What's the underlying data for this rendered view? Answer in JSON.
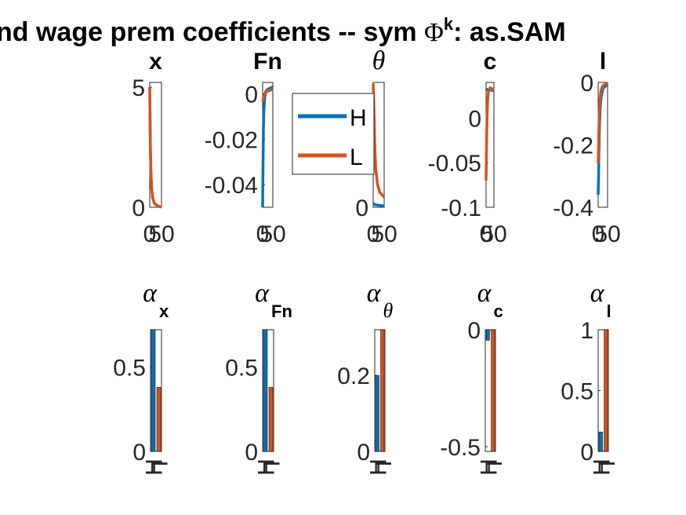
{
  "figure": {
    "suptitle_pre": "nd wage prem coefficients -- sym ",
    "suptitle_phi": "Φ",
    "suptitle_sup": "k",
    "suptitle_post": ": as.SAM"
  },
  "colors": {
    "H": "#0072BD",
    "L": "#D95319",
    "axis": "#262626"
  },
  "legend": {
    "entries": [
      "H",
      "L"
    ],
    "location": "inside panel 2 (Fn), right"
  },
  "chart_data": [
    {
      "type": "line",
      "title": "x",
      "xticks": [
        "0",
        "50"
      ],
      "xlim": [
        0,
        50
      ],
      "ylim": [
        0,
        5.2
      ],
      "yticks": [
        0,
        5
      ],
      "ytick_labels": [
        "0",
        "5"
      ],
      "series": [
        {
          "name": "H",
          "points": [
            [
              0,
              5.0
            ],
            [
              1,
              4.0
            ],
            [
              2,
              3.0
            ],
            [
              3,
              2.3
            ],
            [
              5,
              1.4
            ],
            [
              8,
              0.8
            ],
            [
              12,
              0.4
            ],
            [
              20,
              0.15
            ],
            [
              35,
              0.04
            ],
            [
              50,
              0.01
            ]
          ]
        },
        {
          "name": "L",
          "points": [
            [
              0,
              5.0
            ],
            [
              1,
              4.05
            ],
            [
              2,
              3.05
            ],
            [
              3,
              2.35
            ],
            [
              5,
              1.45
            ],
            [
              8,
              0.82
            ],
            [
              12,
              0.42
            ],
            [
              20,
              0.16
            ],
            [
              35,
              0.05
            ],
            [
              50,
              0.01
            ]
          ]
        }
      ]
    },
    {
      "type": "line",
      "title": "Fn",
      "xticks": [
        "0",
        "50"
      ],
      "xlim": [
        0,
        50
      ],
      "ylim": [
        -0.05,
        0.005
      ],
      "yticks": [
        -0.04,
        -0.02,
        0
      ],
      "ytick_labels": [
        "-0.04",
        "-0.02",
        "0"
      ],
      "series": [
        {
          "name": "H",
          "points": [
            [
              0,
              -0.05
            ],
            [
              2,
              -0.03
            ],
            [
              4,
              -0.015
            ],
            [
              6,
              -0.008
            ],
            [
              10,
              -0.002
            ],
            [
              15,
              0.001
            ],
            [
              25,
              0.002
            ],
            [
              50,
              0.003
            ]
          ]
        },
        {
          "name": "L",
          "points": [
            [
              0,
              -0.0035
            ],
            [
              3,
              -0.0025
            ],
            [
              6,
              -0.001
            ],
            [
              10,
              0.0
            ],
            [
              20,
              0.001
            ],
            [
              50,
              0.002
            ]
          ]
        }
      ]
    },
    {
      "type": "line",
      "title": "θ",
      "xticks": [
        "0",
        "50"
      ],
      "xlim": [
        0,
        50
      ],
      "ylim": [
        0,
        1.0
      ],
      "yticks": [
        0
      ],
      "ytick_labels": [
        "0"
      ],
      "series": [
        {
          "name": "H",
          "points": [
            [
              0,
              0.03
            ],
            [
              10,
              0.02
            ],
            [
              50,
              0.01
            ]
          ]
        },
        {
          "name": "L",
          "points": [
            [
              0,
              0.99
            ],
            [
              2,
              0.9
            ],
            [
              4,
              0.75
            ],
            [
              6,
              0.6
            ],
            [
              8,
              0.45
            ],
            [
              12,
              0.3
            ],
            [
              20,
              0.18
            ],
            [
              30,
              0.12
            ],
            [
              50,
              0.08
            ]
          ]
        }
      ]
    },
    {
      "type": "line",
      "title": "c",
      "xticks": [
        "0",
        "50"
      ],
      "xlim": [
        0,
        50
      ],
      "ylim": [
        -0.1,
        0.04
      ],
      "yticks": [
        -0.1,
        -0.05,
        0
      ],
      "ytick_labels": [
        "-0.1",
        "-0.05",
        "0"
      ],
      "series": [
        {
          "name": "H",
          "points": [
            [
              0,
              0.033
            ],
            [
              5,
              0.032
            ],
            [
              50,
              0.031
            ]
          ]
        },
        {
          "name": "L",
          "points": [
            [
              0,
              -0.07
            ],
            [
              2,
              -0.04
            ],
            [
              4,
              -0.02
            ],
            [
              6,
              0.0
            ],
            [
              10,
              0.02
            ],
            [
              15,
              0.03
            ],
            [
              25,
              0.034
            ],
            [
              50,
              0.032
            ]
          ]
        }
      ]
    },
    {
      "type": "line",
      "title": "l",
      "xticks": [
        "0",
        "50"
      ],
      "xlim": [
        0,
        50
      ],
      "ylim": [
        -0.4,
        0.0
      ],
      "yticks": [
        -0.4,
        -0.2,
        0
      ],
      "ytick_labels": [
        "-0.4",
        "-0.2",
        "0"
      ],
      "series": [
        {
          "name": "H",
          "points": [
            [
              0,
              -0.36
            ],
            [
              2,
              -0.3
            ],
            [
              4,
              -0.22
            ],
            [
              6,
              -0.16
            ],
            [
              10,
              -0.09
            ],
            [
              15,
              -0.05
            ],
            [
              25,
              -0.02
            ],
            [
              50,
              -0.005
            ]
          ]
        },
        {
          "name": "L",
          "points": [
            [
              0,
              -0.26
            ],
            [
              2,
              -0.2
            ],
            [
              4,
              -0.14
            ],
            [
              6,
              -0.1
            ],
            [
              10,
              -0.05
            ],
            [
              15,
              -0.025
            ],
            [
              25,
              -0.01
            ],
            [
              50,
              -0.002
            ]
          ]
        }
      ]
    },
    {
      "type": "bar",
      "title": "α",
      "title_sub": "x",
      "sub_italic": false,
      "categories": [
        "H",
        "L"
      ],
      "values": [
        0.72,
        0.38
      ],
      "ylim": [
        0,
        0.72
      ],
      "yticks": [
        0,
        0.5
      ],
      "ytick_labels": [
        "0",
        "0.5"
      ]
    },
    {
      "type": "bar",
      "title": "α",
      "title_sub": "Fn",
      "sub_italic": false,
      "categories": [
        "H",
        "L"
      ],
      "values": [
        0.72,
        0.38
      ],
      "ylim": [
        0,
        0.72
      ],
      "yticks": [
        0,
        0.5
      ],
      "ytick_labels": [
        "0",
        "0.5"
      ]
    },
    {
      "type": "bar",
      "title": "α",
      "title_sub": "θ",
      "sub_italic": true,
      "categories": [
        "H",
        "L"
      ],
      "values": [
        0.2,
        0.32
      ],
      "ylim": [
        0,
        0.32
      ],
      "yticks": [
        0,
        0.2
      ],
      "ytick_labels": [
        "0",
        "0.2"
      ]
    },
    {
      "type": "bar",
      "title": "α",
      "title_sub": "c",
      "sub_italic": false,
      "categories": [
        "H",
        "L"
      ],
      "values": [
        -0.045,
        -0.52
      ],
      "ylim": [
        -0.52,
        0.0
      ],
      "yticks": [
        -0.5,
        0
      ],
      "ytick_labels": [
        "-0.5",
        "0"
      ]
    },
    {
      "type": "bar",
      "title": "α",
      "title_sub": "l",
      "sub_italic": false,
      "categories": [
        "H",
        "L"
      ],
      "values": [
        0.16,
        1.0
      ],
      "ylim": [
        0,
        1.0
      ],
      "yticks": [
        0,
        0.5,
        1
      ],
      "ytick_labels": [
        "0",
        "0.5",
        "1"
      ]
    }
  ]
}
